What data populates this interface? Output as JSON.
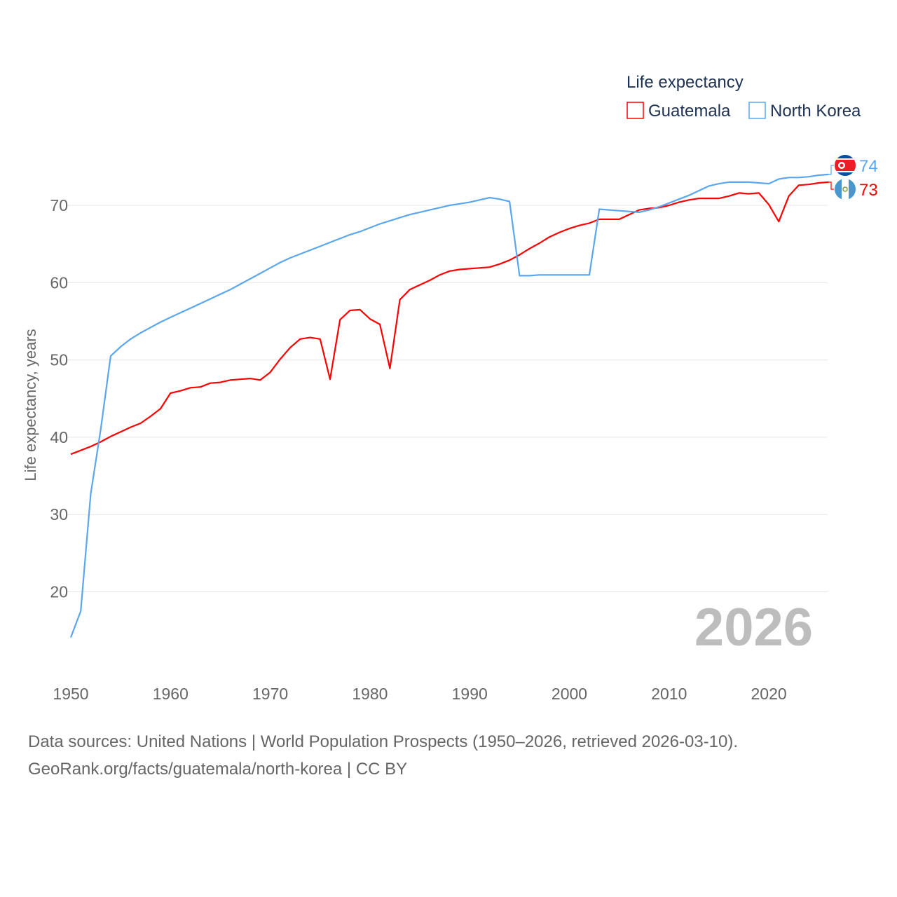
{
  "chart_data": {
    "type": "line",
    "legend_title": "Life expectancy",
    "legend_position": "top-right",
    "ylabel": "Life expectancy, years",
    "xlabel": "",
    "ylim": [
      12,
      76
    ],
    "xlim": [
      1950,
      2026
    ],
    "yticks": [
      "20",
      "30",
      "40",
      "50",
      "60",
      "70"
    ],
    "ytick_values": [
      20,
      30,
      40,
      50,
      60,
      70
    ],
    "xticks": [
      "1950",
      "1960",
      "1970",
      "1980",
      "1990",
      "2000",
      "2010",
      "2020"
    ],
    "xtick_values": [
      1950,
      1960,
      1970,
      1980,
      1990,
      2000,
      2010,
      2020
    ],
    "year_watermark": "2026",
    "grid": true,
    "x": [
      1950,
      1951,
      1952,
      1953,
      1954,
      1955,
      1956,
      1957,
      1958,
      1959,
      1960,
      1961,
      1962,
      1963,
      1964,
      1965,
      1966,
      1967,
      1968,
      1969,
      1970,
      1971,
      1972,
      1973,
      1974,
      1975,
      1976,
      1977,
      1978,
      1979,
      1980,
      1981,
      1982,
      1983,
      1984,
      1985,
      1986,
      1987,
      1988,
      1989,
      1990,
      1991,
      1992,
      1993,
      1994,
      1995,
      1996,
      1997,
      1998,
      1999,
      2000,
      2001,
      2002,
      2003,
      2004,
      2005,
      2006,
      2007,
      2008,
      2009,
      2010,
      2011,
      2012,
      2013,
      2014,
      2015,
      2016,
      2017,
      2018,
      2019,
      2020,
      2021,
      2022,
      2023,
      2024,
      2025,
      2026
    ],
    "series": [
      {
        "name": "Guatemala",
        "color": "#ff0000",
        "end_label": "73",
        "values": [
          37.8,
          38.3,
          38.8,
          39.4,
          40.1,
          40.7,
          41.3,
          41.8,
          42.7,
          43.7,
          45.7,
          46.0,
          46.4,
          46.5,
          47.0,
          47.1,
          47.4,
          47.5,
          47.6,
          47.4,
          48.4,
          50.1,
          51.6,
          52.7,
          52.9,
          52.7,
          47.5,
          55.2,
          56.4,
          56.5,
          55.3,
          54.6,
          48.9,
          57.8,
          59.1,
          59.7,
          60.3,
          61.0,
          61.5,
          61.7,
          61.8,
          61.9,
          62.0,
          62.4,
          62.9,
          63.6,
          64.4,
          65.1,
          65.9,
          66.5,
          67.0,
          67.4,
          67.7,
          68.2,
          68.2,
          68.2,
          68.8,
          69.4,
          69.6,
          69.7,
          70.0,
          70.4,
          70.7,
          70.9,
          70.9,
          70.9,
          71.2,
          71.6,
          71.5,
          71.6,
          70.1,
          67.9,
          71.2,
          72.6,
          72.7,
          72.9,
          73.0
        ]
      },
      {
        "name": "North Korea",
        "color": "#5ba6ec",
        "end_label": "74",
        "values": [
          14.1,
          17.5,
          32.7,
          41.0,
          50.5,
          51.7,
          52.7,
          53.5,
          54.2,
          54.9,
          55.5,
          56.1,
          56.7,
          57.3,
          57.9,
          58.5,
          59.1,
          59.8,
          60.5,
          61.2,
          61.9,
          62.6,
          63.2,
          63.7,
          64.2,
          64.7,
          65.2,
          65.7,
          66.2,
          66.6,
          67.1,
          67.6,
          68.0,
          68.4,
          68.8,
          69.1,
          69.4,
          69.7,
          70.0,
          70.2,
          70.4,
          70.7,
          71.0,
          70.8,
          70.5,
          60.9,
          60.9,
          61.0,
          61.0,
          61.0,
          61.0,
          61.0,
          61.0,
          69.5,
          69.4,
          69.3,
          69.2,
          69.1,
          69.4,
          69.8,
          70.3,
          70.8,
          71.3,
          71.9,
          72.5,
          72.8,
          73.0,
          73.0,
          73.0,
          72.9,
          72.8,
          73.4,
          73.6,
          73.6,
          73.7,
          73.9,
          74.0
        ]
      }
    ]
  },
  "footer": {
    "line1": "Data sources: United Nations | World Population Prospects (1950–2026, retrieved 2026-03-10).",
    "line2": "GeoRank.org/facts/guatemala/north-korea | CC BY"
  }
}
